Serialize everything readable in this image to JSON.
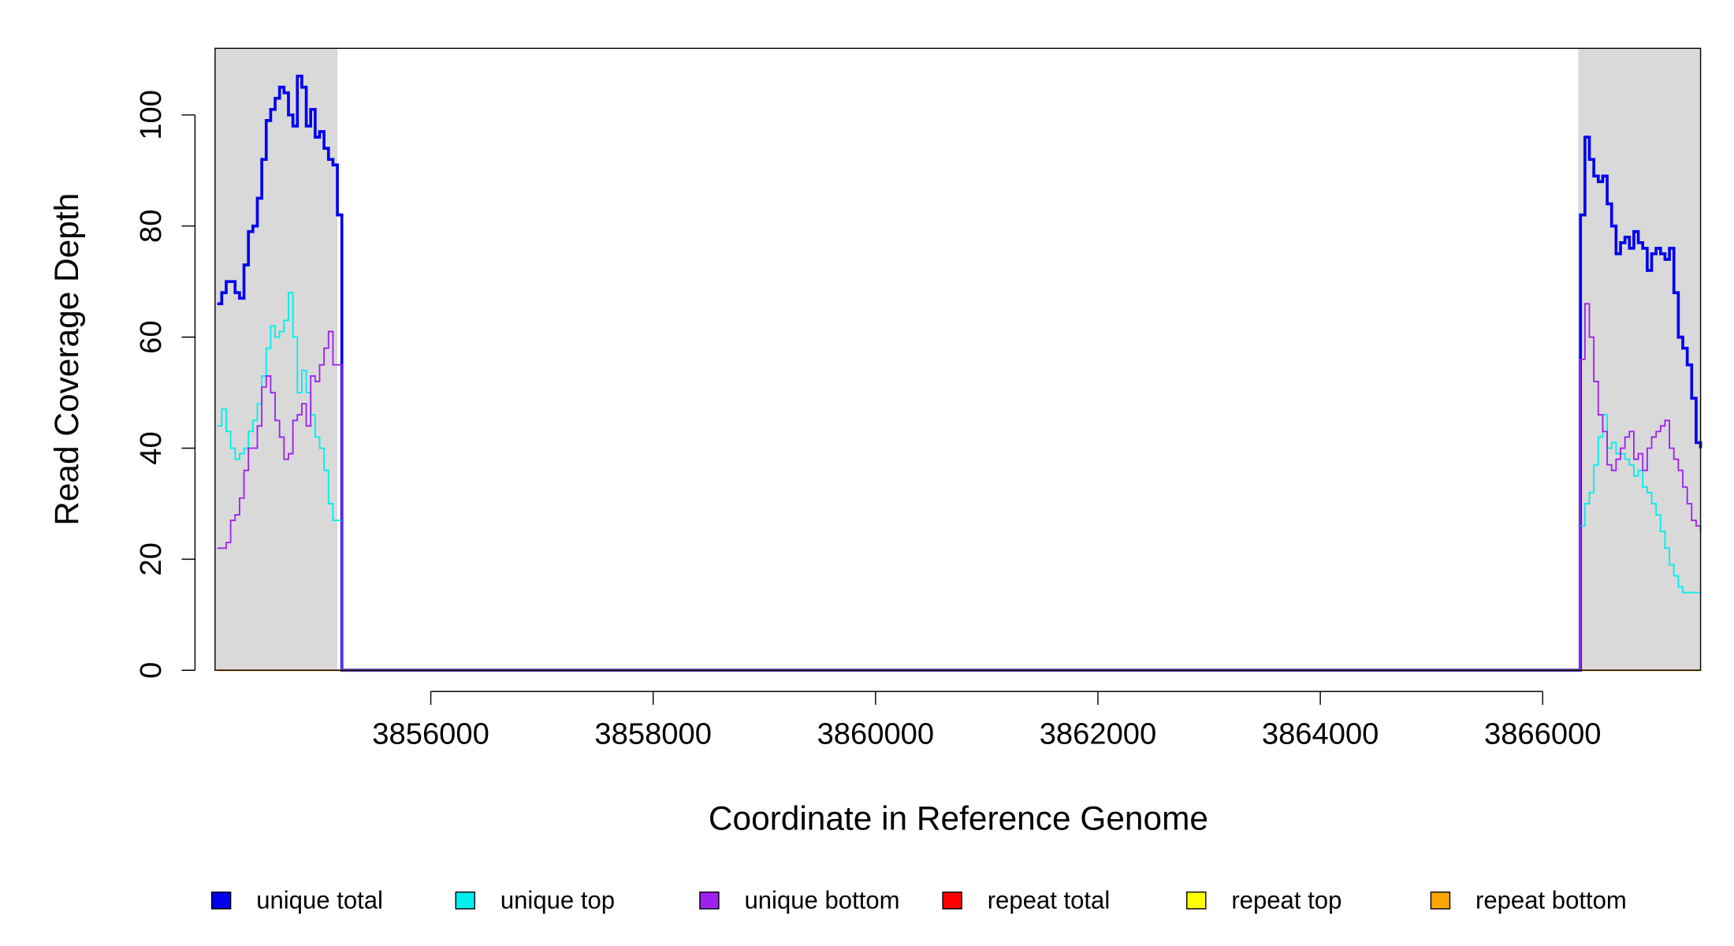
{
  "chart_data": {
    "type": "line",
    "step": true,
    "x_label": "Coordinate in Reference Genome",
    "y_label": "Read Coverage Depth",
    "xlim": [
      3854060,
      3867420
    ],
    "ylim": [
      0,
      112
    ],
    "xticks": [
      3856000,
      3858000,
      3860000,
      3862000,
      3864000,
      3866000
    ],
    "yticks": [
      0,
      20,
      40,
      60,
      80,
      100
    ],
    "shaded_regions": [
      [
        3854060,
        3855160
      ],
      [
        3866320,
        3867420
      ]
    ],
    "shade_color": "#d9d9d9",
    "x": [
      3854080,
      3854120,
      3854160,
      3854200,
      3854240,
      3854280,
      3854320,
      3854360,
      3854400,
      3854440,
      3854480,
      3854520,
      3854560,
      3854600,
      3854640,
      3854680,
      3854720,
      3854760,
      3854800,
      3854840,
      3854880,
      3854920,
      3854960,
      3855000,
      3855040,
      3855080,
      3855120,
      3855160,
      3855200,
      3866300,
      3866340,
      3866380,
      3866420,
      3866460,
      3866500,
      3866540,
      3866580,
      3866620,
      3866660,
      3866700,
      3866740,
      3866780,
      3866820,
      3866860,
      3866900,
      3866940,
      3866980,
      3867020,
      3867060,
      3867100,
      3867140,
      3867180,
      3867220,
      3867260,
      3867300,
      3867340,
      3867380,
      3867420
    ],
    "series": [
      {
        "name": "unique total",
        "color": "#0000ee",
        "width": 2.6,
        "values": [
          66,
          68,
          70,
          70,
          68,
          67,
          73,
          79,
          80,
          85,
          92,
          99,
          101,
          103,
          105,
          104,
          100,
          98,
          107,
          105,
          98,
          101,
          96,
          97,
          94,
          92,
          91,
          82,
          0,
          0,
          82,
          96,
          92,
          89,
          88,
          89,
          84,
          80,
          75,
          77,
          78,
          76,
          79,
          77,
          76,
          72,
          75,
          76,
          75,
          74,
          76,
          68,
          60,
          58,
          55,
          49,
          41,
          40
        ]
      },
      {
        "name": "unique top",
        "color": "#00eeee",
        "width": 1.3,
        "values": [
          44,
          47,
          43,
          40,
          38,
          39,
          40,
          43,
          45,
          48,
          53,
          58,
          62,
          60,
          61,
          63,
          68,
          60,
          50,
          54,
          50,
          46,
          42,
          40,
          36,
          30,
          27,
          27,
          0,
          0,
          26,
          30,
          32,
          37,
          42,
          46,
          40,
          41,
          39,
          39,
          38,
          37,
          35,
          36,
          33,
          32,
          30,
          28,
          25,
          22,
          19,
          17,
          15,
          14,
          14,
          14,
          14,
          14
        ]
      },
      {
        "name": "unique bottom",
        "color": "#a020f0",
        "width": 1.3,
        "values": [
          22,
          22,
          23,
          27,
          28,
          31,
          36,
          40,
          40,
          44,
          51,
          53,
          50,
          45,
          42,
          38,
          39,
          45,
          46,
          48,
          44,
          53,
          52,
          55,
          58,
          61,
          55,
          55,
          0,
          0,
          56,
          66,
          60,
          52,
          46,
          43,
          37,
          36,
          38,
          40,
          42,
          43,
          38,
          39,
          36,
          40,
          42,
          43,
          44,
          45,
          40,
          38,
          36,
          33,
          30,
          27,
          26,
          25
        ]
      },
      {
        "name": "repeat total",
        "color": "#ff0000",
        "width": 1.3,
        "values": [
          0,
          0,
          0,
          0,
          0,
          0,
          0,
          0,
          0,
          0,
          0,
          0,
          0,
          0,
          0,
          0,
          0,
          0,
          0,
          0,
          0,
          0,
          0,
          0,
          0,
          0,
          0,
          0,
          0,
          0,
          0,
          0,
          0,
          0,
          0,
          0,
          0,
          0,
          0,
          0,
          0,
          0,
          0,
          0,
          0,
          0,
          0,
          0,
          0,
          0,
          0,
          0,
          0,
          0,
          0,
          0,
          0,
          0
        ]
      },
      {
        "name": "repeat top",
        "color": "#ffff00",
        "width": 1.3,
        "values": [
          0,
          0,
          0,
          0,
          0,
          0,
          0,
          0,
          0,
          0,
          0,
          0,
          0,
          0,
          0,
          0,
          0,
          0,
          0,
          0,
          0,
          0,
          0,
          0,
          0,
          0,
          0,
          0,
          0,
          0,
          0,
          0,
          0,
          0,
          0,
          0,
          0,
          0,
          0,
          0,
          0,
          0,
          0,
          0,
          0,
          0,
          0,
          0,
          0,
          0,
          0,
          0,
          0,
          0,
          0,
          0,
          0,
          0
        ]
      },
      {
        "name": "repeat bottom",
        "color": "#ffa500",
        "width": 1.3,
        "values": [
          0,
          0,
          0,
          0,
          0,
          0,
          0,
          0,
          0,
          0,
          0,
          0,
          0,
          0,
          0,
          0,
          0,
          0,
          0,
          0,
          0,
          0,
          0,
          0,
          0,
          0,
          0,
          0,
          0,
          0,
          0,
          0,
          0,
          0,
          0,
          0,
          0,
          0,
          0,
          0,
          0,
          0,
          0,
          0,
          0,
          0,
          0,
          0,
          0,
          0,
          0,
          0,
          0,
          0,
          0,
          0,
          0,
          0
        ]
      }
    ]
  }
}
